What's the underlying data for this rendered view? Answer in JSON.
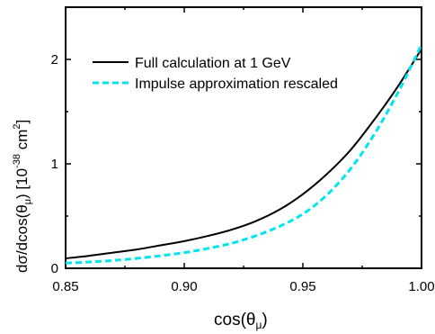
{
  "chart_data": {
    "type": "line",
    "xlabel_base": "cos(θ",
    "xlabel_sub": "μ",
    "xlabel_close": ")",
    "ylabel_pre": "dσ/dcos(θ",
    "ylabel_sub": "μ",
    "ylabel_mid": ") [10",
    "ylabel_exp": "-38",
    "ylabel_unit": " cm",
    "ylabel_unit_exp": "2",
    "ylabel_close": "]",
    "xlim": [
      0.85,
      1.0
    ],
    "ylim": [
      0,
      2.5
    ],
    "xticks": [
      0.85,
      0.9,
      0.95,
      1.0
    ],
    "xtick_labels": [
      "0.85",
      "0.90",
      "0.95",
      "1.00"
    ],
    "yticks": [
      0,
      1,
      2
    ],
    "ytick_labels": [
      "0",
      "1",
      "2"
    ],
    "legend_position": "top-left",
    "series": [
      {
        "name": "Full calculation at 1 GeV",
        "color": "#000000",
        "dash": "solid",
        "x": [
          0.85,
          0.86,
          0.87,
          0.88,
          0.89,
          0.9,
          0.91,
          0.92,
          0.93,
          0.94,
          0.95,
          0.96,
          0.97,
          0.98,
          0.99,
          1.0
        ],
        "y": [
          0.095,
          0.12,
          0.15,
          0.18,
          0.22,
          0.26,
          0.31,
          0.37,
          0.45,
          0.56,
          0.71,
          0.9,
          1.13,
          1.42,
          1.74,
          2.1
        ]
      },
      {
        "name": "Impulse approximation rescaled",
        "color": "#00e5ee",
        "dash": "dashed",
        "x": [
          0.85,
          0.86,
          0.87,
          0.88,
          0.89,
          0.9,
          0.91,
          0.92,
          0.93,
          0.94,
          0.95,
          0.96,
          0.97,
          0.98,
          0.99,
          1.0
        ],
        "y": [
          0.05,
          0.06,
          0.075,
          0.095,
          0.12,
          0.15,
          0.19,
          0.24,
          0.31,
          0.4,
          0.52,
          0.7,
          0.95,
          1.28,
          1.68,
          2.14
        ]
      }
    ]
  }
}
